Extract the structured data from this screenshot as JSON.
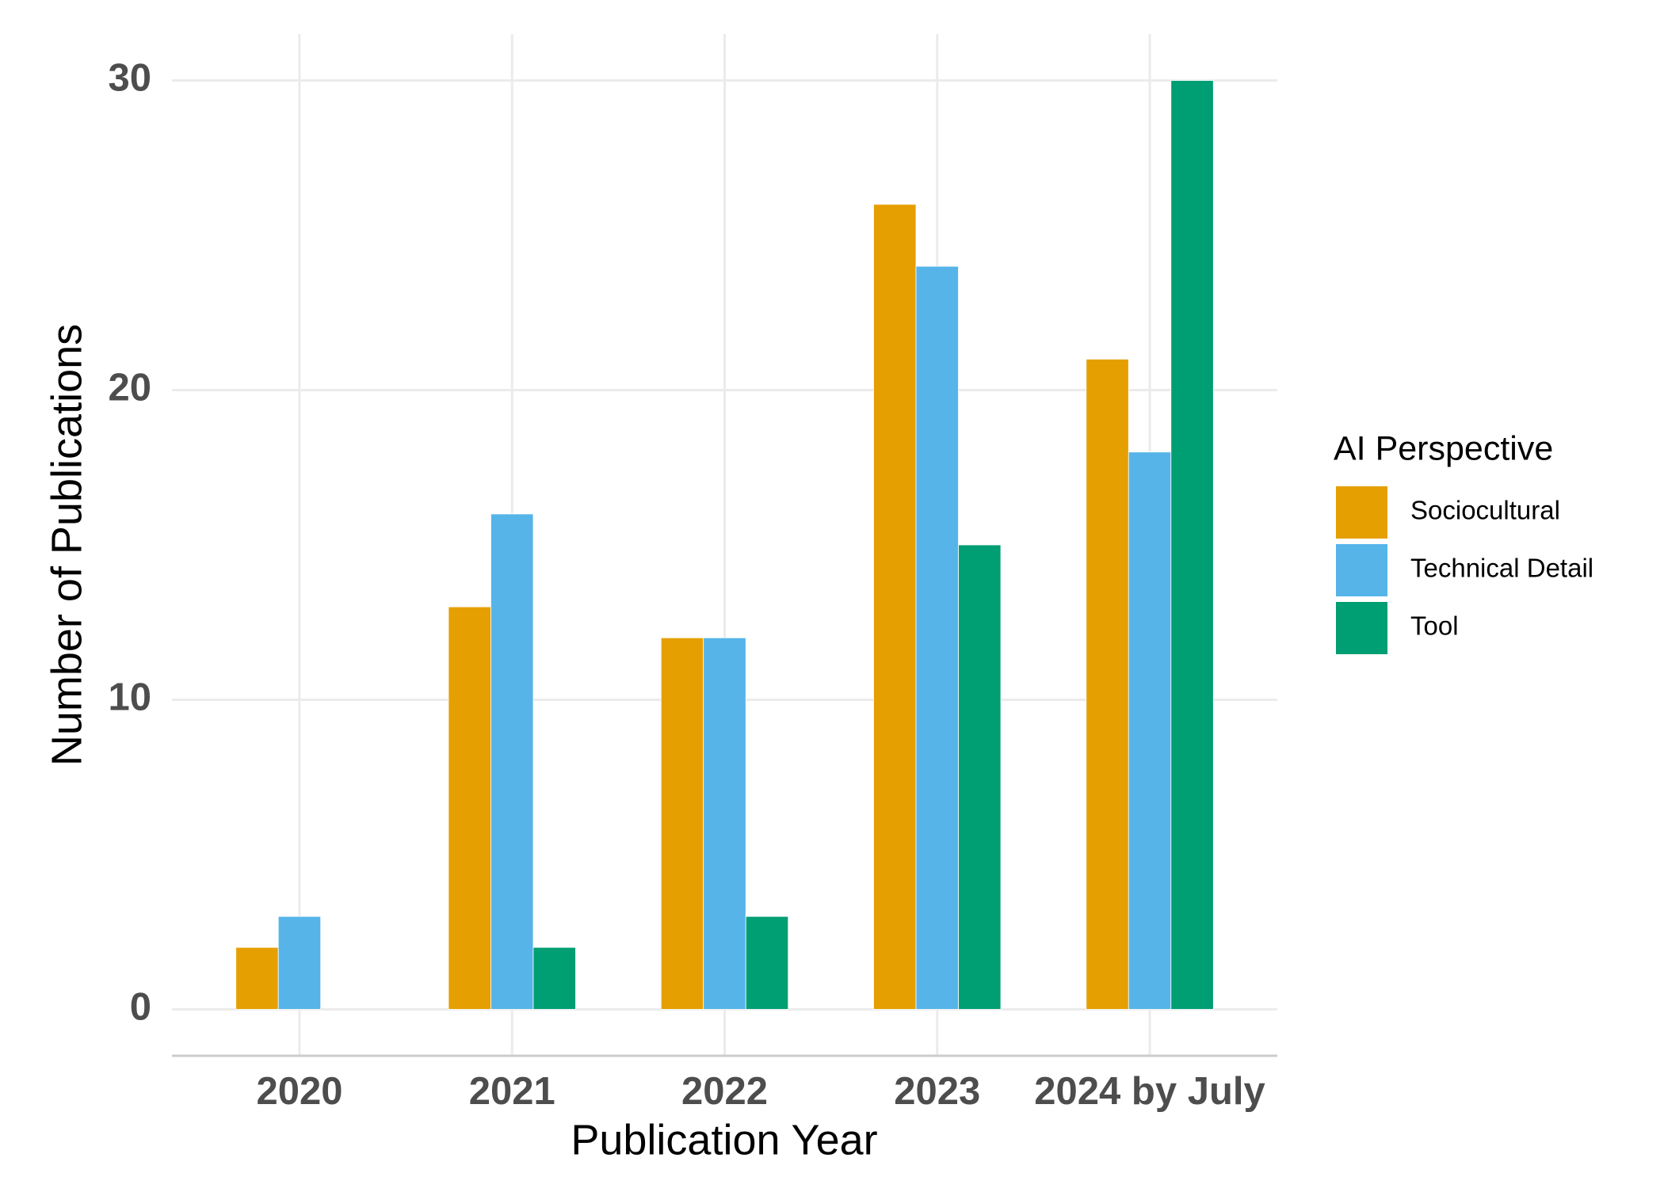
{
  "chart_data": {
    "type": "bar",
    "x_label": "Publication Year",
    "y_label": "Number of Publications",
    "legend_title": "AI Perspective",
    "legend_position": "right",
    "categories": [
      "2020",
      "2021",
      "2022",
      "2023",
      "2024 by July"
    ],
    "series": [
      {
        "name": "Sociocultural",
        "color": "#E69F00",
        "values": [
          2,
          13,
          12,
          26,
          21
        ]
      },
      {
        "name": "Technical Detail",
        "color": "#56B4E9",
        "values": [
          3,
          16,
          12,
          24,
          18
        ]
      },
      {
        "name": "Tool",
        "color": "#009E73",
        "values": [
          null,
          2,
          3,
          15,
          30
        ]
      }
    ],
    "ylim": [
      -1.5,
      31.5
    ],
    "yticks": [
      0,
      10,
      20,
      30
    ],
    "grid": true
  }
}
